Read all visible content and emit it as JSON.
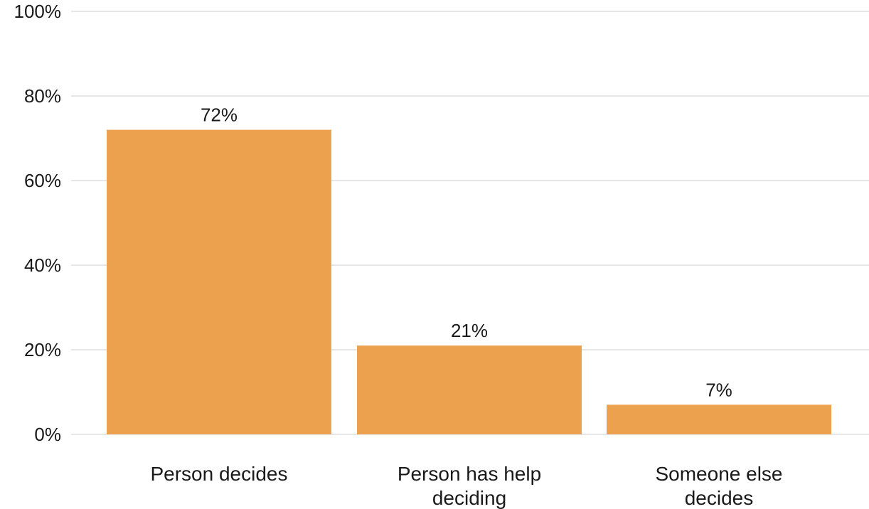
{
  "chart_data": {
    "type": "bar",
    "categories": [
      [
        "Person decides"
      ],
      [
        "Person has help",
        "deciding"
      ],
      [
        "Someone else",
        "decides"
      ]
    ],
    "values": [
      72,
      21,
      7
    ],
    "data_labels": [
      "72%",
      "21%",
      "7%"
    ],
    "ylim": [
      0,
      100
    ],
    "yticks": [
      0,
      20,
      40,
      60,
      80,
      100
    ],
    "ytick_labels": [
      "0%",
      "20%",
      "40%",
      "60%",
      "80%",
      "100%"
    ],
    "grid": true,
    "bar_color": "#eba14d",
    "title": "",
    "xlabel": "",
    "ylabel": ""
  }
}
